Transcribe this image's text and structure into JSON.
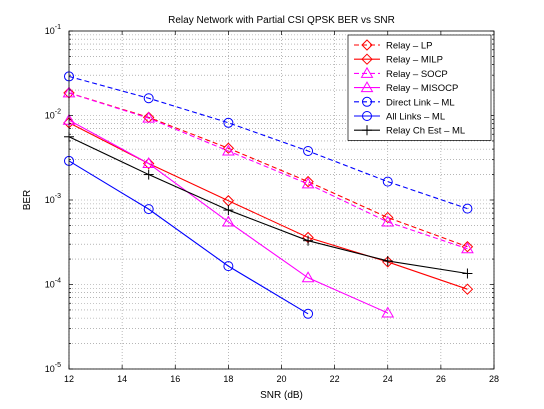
{
  "chart_data": {
    "type": "line",
    "title": "Relay Network with Partial CSI QPSK BER vs SNR",
    "xlabel": "SNR (dB)",
    "ylabel": "BER",
    "xlim": [
      12,
      28
    ],
    "ylim": [
      1e-05,
      0.1
    ],
    "yscale": "log",
    "grid": true,
    "legend_position": "top-right",
    "x_ticks": [
      "12",
      "14",
      "16",
      "18",
      "20",
      "22",
      "24",
      "26",
      "28"
    ],
    "y_tick_labels": [
      {
        "base": "10",
        "exp": "-1"
      },
      {
        "base": "10",
        "exp": "-2"
      },
      {
        "base": "10",
        "exp": "-3"
      },
      {
        "base": "10",
        "exp": "-4"
      },
      {
        "base": "10",
        "exp": "-5"
      }
    ],
    "series": [
      {
        "name": "Relay – LP",
        "color": "#ff0000",
        "dash": true,
        "marker": "diamond",
        "x": [
          12,
          15,
          18,
          21,
          24,
          27
        ],
        "y": [
          0.0185,
          0.0095,
          0.0041,
          0.00165,
          0.00062,
          0.00028
        ]
      },
      {
        "name": "Relay – MILP",
        "color": "#ff0000",
        "dash": false,
        "marker": "diamond",
        "x": [
          12,
          15,
          18,
          21,
          24,
          27
        ],
        "y": [
          0.0082,
          0.0027,
          0.00098,
          0.00036,
          0.000185,
          8.8e-05
        ]
      },
      {
        "name": "Relay – SOCP",
        "color": "#ff00ff",
        "dash": true,
        "marker": "triangle",
        "x": [
          12,
          15,
          18,
          21,
          24,
          27
        ],
        "y": [
          0.0185,
          0.0093,
          0.0038,
          0.00155,
          0.00055,
          0.000265
        ]
      },
      {
        "name": "Relay – MISOCP",
        "color": "#ff00ff",
        "dash": false,
        "marker": "triangle",
        "x": [
          12,
          15,
          18,
          21,
          24
        ],
        "y": [
          0.0088,
          0.0027,
          0.00055,
          0.00012,
          4.6e-05
        ]
      },
      {
        "name": "Direct Link – ML",
        "color": "#0000ff",
        "dash": true,
        "marker": "circle",
        "x": [
          12,
          15,
          18,
          21,
          24,
          27
        ],
        "y": [
          0.029,
          0.016,
          0.0082,
          0.0038,
          0.00165,
          0.00079
        ]
      },
      {
        "name": "All Links – ML",
        "color": "#0000ff",
        "dash": false,
        "marker": "circle",
        "x": [
          12,
          15,
          18,
          21
        ],
        "y": [
          0.0029,
          0.00078,
          0.000165,
          4.5e-05
        ]
      },
      {
        "name": "Relay Ch Est – ML",
        "color": "#000000",
        "dash": false,
        "marker": "plus",
        "x": [
          12,
          15,
          18,
          21,
          24,
          27
        ],
        "y": [
          0.0056,
          0.002,
          0.00076,
          0.00033,
          0.00019,
          0.000135
        ]
      }
    ]
  }
}
